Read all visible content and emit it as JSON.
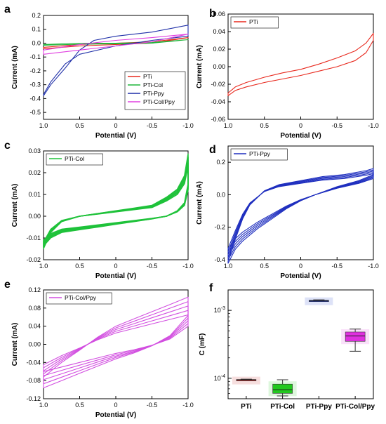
{
  "chart_data": [
    {
      "panel": "a",
      "type": "line",
      "xlabel": "Potential (V)",
      "ylabel": "Current (mA)",
      "xlim": [
        1.0,
        -1.0
      ],
      "ylim": [
        -0.55,
        0.2
      ],
      "xticks": [
        "1.0",
        "0.5",
        "0",
        "-0.5",
        "-1.0"
      ],
      "yticks": [
        "0.2",
        "0.1",
        "0.0",
        "-0.1",
        "-0.2",
        "-0.3",
        "-0.4",
        "-0.5"
      ],
      "legend": "bottom-right",
      "series": [
        {
          "name": "PTi",
          "color": "#e8281d",
          "x": [
            1.0,
            0.5,
            0,
            -0.5,
            -1.0,
            -0.5,
            0,
            0.5,
            1.0
          ],
          "y": [
            -0.03,
            -0.01,
            0.0,
            0.01,
            0.04,
            0.0,
            -0.01,
            -0.02,
            -0.04
          ]
        },
        {
          "name": "PTi-Col",
          "color": "#1fb53a",
          "x": [
            1.0,
            0.5,
            0,
            -0.5,
            -1.0,
            -0.5,
            0,
            0.5,
            1.0
          ],
          "y": [
            -0.01,
            0.0,
            0.0,
            0.005,
            0.025,
            0.0,
            -0.005,
            -0.008,
            -0.015
          ]
        },
        {
          "name": "PTi-Ppy",
          "color": "#1f2fa8",
          "x": [
            1.0,
            0.9,
            0.7,
            0.5,
            0.3,
            0,
            -0.5,
            -1.0,
            -1.0,
            -0.5,
            0,
            0.5,
            0.7,
            0.9,
            1.0
          ],
          "y": [
            -0.38,
            -0.3,
            -0.18,
            -0.05,
            0.02,
            0.05,
            0.08,
            0.13,
            0.05,
            0.02,
            -0.02,
            -0.08,
            -0.15,
            -0.28,
            -0.37
          ]
        },
        {
          "name": "PTi-Col/Ppy",
          "color": "#e040e0",
          "x": [
            1.0,
            0.5,
            0,
            -0.5,
            -1.0,
            -0.5,
            0,
            0.5,
            1.0
          ],
          "y": [
            -0.05,
            -0.01,
            0.02,
            0.04,
            0.065,
            0.01,
            -0.02,
            -0.05,
            -0.08
          ]
        }
      ]
    },
    {
      "panel": "b",
      "type": "line",
      "xlabel": "Potential (V)",
      "ylabel": "Current (mA)",
      "xlim": [
        1.0,
        -1.0
      ],
      "ylim": [
        -0.06,
        0.06
      ],
      "xticks": [
        "1.0",
        "0.5",
        "0",
        "-0.5",
        "-1.0"
      ],
      "yticks": [
        "0.06",
        "0.04",
        "0.02",
        "0.00",
        "-0.02",
        "-0.04",
        "-0.06"
      ],
      "legend": "top-left",
      "series": [
        {
          "name": "PTi",
          "color": "#e8281d",
          "x": [
            1.0,
            0.9,
            0.75,
            0.5,
            0.25,
            0,
            -0.25,
            -0.5,
            -0.75,
            -0.9,
            -1.0,
            -1.0,
            -0.9,
            -0.75,
            -0.5,
            -0.25,
            0,
            0.25,
            0.5,
            0.75,
            0.9,
            1.0
          ],
          "y": [
            -0.03,
            -0.023,
            -0.018,
            -0.012,
            -0.007,
            -0.003,
            0.003,
            0.01,
            0.018,
            0.027,
            0.038,
            0.03,
            0.016,
            0.007,
            0.0,
            -0.005,
            -0.01,
            -0.014,
            -0.018,
            -0.023,
            -0.027,
            -0.033
          ]
        }
      ]
    },
    {
      "panel": "c",
      "type": "line",
      "xlabel": "Potential (V)",
      "ylabel": "Current (mA)",
      "xlim": [
        1.0,
        -1.0
      ],
      "ylim": [
        -0.02,
        0.03
      ],
      "xticks": [
        "1.0",
        "0.5",
        "0",
        "-0.5",
        "-1.0"
      ],
      "yticks": [
        "0.03",
        "0.02",
        "0.01",
        "0.00",
        "-0.01",
        "-0.02"
      ],
      "legend": "top-left",
      "series": [
        {
          "name": "PTi-Col",
          "color": "#1fc23a",
          "x": [
            1.0,
            0.9,
            0.75,
            0.5,
            0.25,
            0,
            -0.25,
            -0.5,
            -0.7,
            -0.85,
            -0.95,
            -1.0,
            -1.0,
            -0.95,
            -0.85,
            -0.7,
            -0.5,
            -0.25,
            0,
            0.25,
            0.5,
            0.75,
            0.9,
            1.0
          ],
          "y": [
            -0.012,
            -0.006,
            -0.002,
            0.0,
            0.001,
            0.002,
            0.003,
            0.004,
            0.007,
            0.01,
            0.015,
            0.023,
            0.012,
            0.005,
            0.002,
            0.0,
            -0.001,
            -0.002,
            -0.003,
            -0.004,
            -0.005,
            -0.006,
            -0.008,
            -0.011
          ]
        }
      ]
    },
    {
      "panel": "d",
      "type": "line",
      "xlabel": "Potential (V)",
      "ylabel": "Current (mA)",
      "xlim": [
        1.0,
        -1.0
      ],
      "ylim": [
        -0.4,
        0.3
      ],
      "xticks": [
        "1.0",
        "0.5",
        "0",
        "-0.5",
        "-1.0"
      ],
      "yticks": [
        "0.2",
        "0.0",
        "-0.2",
        "-0.4"
      ],
      "legend": "top-left",
      "series": [
        {
          "name": "PTi-Ppy",
          "color": "#1f2fbf",
          "x": [
            1.0,
            0.9,
            0.8,
            0.7,
            0.5,
            0.3,
            0,
            -0.3,
            -0.6,
            -0.9,
            -1.0,
            -1.0,
            -0.8,
            -0.5,
            -0.2,
            0,
            0.2,
            0.4,
            0.6,
            0.8,
            0.9,
            1.0
          ],
          "y": [
            -0.33,
            -0.22,
            -0.12,
            -0.05,
            0.02,
            0.05,
            0.07,
            0.09,
            0.1,
            0.12,
            0.13,
            0.1,
            0.07,
            0.04,
            0.0,
            -0.03,
            -0.07,
            -0.12,
            -0.17,
            -0.23,
            -0.27,
            -0.34
          ]
        }
      ]
    },
    {
      "panel": "e",
      "type": "line",
      "xlabel": "Potential (V)",
      "ylabel": "Current (mA)",
      "xlim": [
        1.0,
        -1.0
      ],
      "ylim": [
        -0.12,
        0.12
      ],
      "xticks": [
        "1.0",
        "0.5",
        "0",
        "-0.5",
        "-1.0"
      ],
      "yticks": [
        "0.12",
        "0.08",
        "0.04",
        "0.00",
        "-0.04",
        "-0.08",
        "-0.12"
      ],
      "legend": "top-left",
      "series": [
        {
          "name": "PTi-Col/Ppy",
          "color": "#d24fe0",
          "x": [
            1.0,
            0.75,
            0.5,
            0.25,
            0,
            -0.25,
            -0.5,
            -0.75,
            -1.0,
            -1.0,
            -0.75,
            -0.5,
            -0.25,
            0,
            0.25,
            0.5,
            0.75,
            1.0
          ],
          "y": [
            -0.045,
            -0.025,
            -0.008,
            0.01,
            0.025,
            0.035,
            0.045,
            0.055,
            0.065,
            0.04,
            0.012,
            -0.002,
            -0.012,
            -0.02,
            -0.03,
            -0.04,
            -0.05,
            -0.06
          ]
        }
      ]
    },
    {
      "panel": "f",
      "type": "box",
      "ylabel": "C (mF)",
      "yscale": "log",
      "ylim": [
        5e-05,
        0.002
      ],
      "yticks": [
        "10^-4",
        "10^-3"
      ],
      "categories": [
        "PTi",
        "PTi-Col",
        "PTi-Ppy",
        "PTi-Col/Ppy"
      ],
      "colors": [
        "#c02020",
        "#22c81e",
        "#1e3cc8",
        "#e030e0"
      ],
      "boxes": [
        {
          "min": 9.3e-05,
          "q1": 9.4e-05,
          "median": 9.5e-05,
          "q3": 9.6e-05,
          "max": 9.7e-05
        },
        {
          "min": 5.5e-05,
          "q1": 6e-05,
          "median": 6.8e-05,
          "q3": 8.2e-05,
          "max": 9.5e-05
        },
        {
          "min": 0.00135,
          "q1": 0.00137,
          "median": 0.00139,
          "q3": 0.00141,
          "max": 0.00143
        },
        {
          "min": 0.00025,
          "q1": 0.00035,
          "median": 0.00042,
          "q3": 0.00048,
          "max": 0.00053
        }
      ]
    }
  ]
}
